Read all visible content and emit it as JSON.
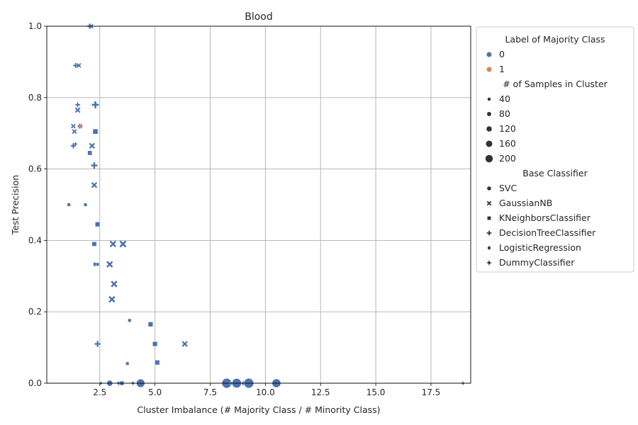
{
  "chart_data": {
    "type": "scatter",
    "title": "Blood",
    "xlabel": "Cluster Imbalance (# Majority Class / # Minority Class)",
    "ylabel": "Test Precision",
    "xlim": [
      0.1,
      19.3
    ],
    "ylim": [
      0.0,
      1.0
    ],
    "xticks": [
      "2.5",
      "5.0",
      "7.5",
      "10.0",
      "12.5",
      "15.0",
      "17.5"
    ],
    "xtick_values": [
      2.5,
      5.0,
      7.5,
      10.0,
      12.5,
      15.0,
      17.5
    ],
    "yticks": [
      "0.0",
      "0.2",
      "0.4",
      "0.6",
      "0.8",
      "1.0"
    ],
    "ytick_values": [
      0.0,
      0.2,
      0.4,
      0.6,
      0.8,
      1.0
    ],
    "grid": true,
    "legend_position": "outside-right",
    "colors": {
      "0": "#4c72b0",
      "1": "#dd8452"
    },
    "legend": {
      "hue_title": "Label of Majority Class",
      "hue_entries": [
        {
          "label": "0",
          "color": "#4c72b0"
        },
        {
          "label": "1",
          "color": "#dd8452"
        }
      ],
      "size_title": "# of Samples in Cluster",
      "size_entries": [
        {
          "label": "40",
          "value": 40
        },
        {
          "label": "80",
          "value": 80
        },
        {
          "label": "120",
          "value": 120
        },
        {
          "label": "160",
          "value": 160
        },
        {
          "label": "200",
          "value": 200
        }
      ],
      "style_title": "Base Classifier",
      "style_entries": [
        {
          "label": "SVC",
          "marker": "circle"
        },
        {
          "label": "GaussianNB",
          "marker": "x"
        },
        {
          "label": "KNeighborsClassifier",
          "marker": "square"
        },
        {
          "label": "DecisionTreeClassifier",
          "marker": "plus"
        },
        {
          "label": "LogisticRegression",
          "marker": "diamond"
        },
        {
          "label": "DummyClassifier",
          "marker": "star"
        }
      ]
    },
    "points": [
      {
        "x": 2.05,
        "y": 1.0,
        "marker": "plus",
        "label": 0,
        "size": 60
      },
      {
        "x": 2.1,
        "y": 1.0,
        "marker": "x",
        "label": 0,
        "size": 50
      },
      {
        "x": 1.4,
        "y": 0.89,
        "marker": "plus",
        "label": 0,
        "size": 50
      },
      {
        "x": 1.55,
        "y": 0.89,
        "marker": "x",
        "label": 0,
        "size": 50
      },
      {
        "x": 1.5,
        "y": 0.78,
        "marker": "plus",
        "label": 0,
        "size": 50
      },
      {
        "x": 2.3,
        "y": 0.78,
        "marker": "plus",
        "label": 0,
        "size": 110
      },
      {
        "x": 1.5,
        "y": 0.765,
        "marker": "x",
        "label": 0,
        "size": 70
      },
      {
        "x": 1.3,
        "y": 0.72,
        "marker": "x",
        "label": 0,
        "size": 50
      },
      {
        "x": 1.6,
        "y": 0.72,
        "marker": "plus",
        "label": 0,
        "size": 50
      },
      {
        "x": 1.62,
        "y": 0.72,
        "marker": "x",
        "label": 1,
        "size": 40
      },
      {
        "x": 1.35,
        "y": 0.705,
        "marker": "x",
        "label": 0,
        "size": 50
      },
      {
        "x": 2.3,
        "y": 0.705,
        "marker": "square",
        "label": 0,
        "size": 90
      },
      {
        "x": 1.3,
        "y": 0.665,
        "marker": "plus",
        "label": 0,
        "size": 60
      },
      {
        "x": 1.4,
        "y": 0.67,
        "marker": "star",
        "label": 0,
        "size": 30
      },
      {
        "x": 2.15,
        "y": 0.665,
        "marker": "x",
        "label": 0,
        "size": 80
      },
      {
        "x": 2.05,
        "y": 0.645,
        "marker": "square",
        "label": 0,
        "size": 70
      },
      {
        "x": 2.25,
        "y": 0.61,
        "marker": "plus",
        "label": 0,
        "size": 90
      },
      {
        "x": 2.25,
        "y": 0.555,
        "marker": "x",
        "label": 0,
        "size": 80
      },
      {
        "x": 1.1,
        "y": 0.5,
        "marker": "square",
        "label": 0,
        "size": 30
      },
      {
        "x": 1.85,
        "y": 0.5,
        "marker": "square",
        "label": 0,
        "size": 30
      },
      {
        "x": 2.4,
        "y": 0.445,
        "marker": "square",
        "label": 0,
        "size": 80
      },
      {
        "x": 2.25,
        "y": 0.39,
        "marker": "square",
        "label": 0,
        "size": 70
      },
      {
        "x": 3.1,
        "y": 0.39,
        "marker": "x",
        "label": 0,
        "size": 100
      },
      {
        "x": 3.55,
        "y": 0.39,
        "marker": "x",
        "label": 0,
        "size": 110
      },
      {
        "x": 2.3,
        "y": 0.333,
        "marker": "square",
        "label": 0,
        "size": 50
      },
      {
        "x": 2.4,
        "y": 0.333,
        "marker": "square",
        "label": 0,
        "size": 30
      },
      {
        "x": 2.95,
        "y": 0.333,
        "marker": "x",
        "label": 0,
        "size": 100
      },
      {
        "x": 3.15,
        "y": 0.278,
        "marker": "x",
        "label": 0,
        "size": 100
      },
      {
        "x": 3.05,
        "y": 0.235,
        "marker": "x",
        "label": 0,
        "size": 100
      },
      {
        "x": 3.85,
        "y": 0.176,
        "marker": "square",
        "label": 0,
        "size": 30
      },
      {
        "x": 4.8,
        "y": 0.165,
        "marker": "square",
        "label": 0,
        "size": 80
      },
      {
        "x": 2.4,
        "y": 0.11,
        "marker": "plus",
        "label": 0,
        "size": 80
      },
      {
        "x": 5.0,
        "y": 0.11,
        "marker": "square",
        "label": 0,
        "size": 80
      },
      {
        "x": 6.35,
        "y": 0.11,
        "marker": "x",
        "label": 0,
        "size": 80
      },
      {
        "x": 3.75,
        "y": 0.055,
        "marker": "square",
        "label": 0,
        "size": 30
      },
      {
        "x": 5.1,
        "y": 0.058,
        "marker": "square",
        "label": 0,
        "size": 80
      },
      {
        "x": 2.95,
        "y": 0.0,
        "marker": "circle",
        "label": 0,
        "size": 90
      },
      {
        "x": 2.55,
        "y": 0.0,
        "marker": "diamond",
        "label": 0,
        "size": 30
      },
      {
        "x": 3.35,
        "y": 0.0,
        "marker": "star",
        "label": 0,
        "size": 40
      },
      {
        "x": 3.5,
        "y": 0.0,
        "marker": "square",
        "label": 0,
        "size": 60
      },
      {
        "x": 4.0,
        "y": 0.0,
        "marker": "diamond",
        "label": 0,
        "size": 40
      },
      {
        "x": 4.35,
        "y": 0.0,
        "marker": "circle",
        "label": 0,
        "size": 160
      },
      {
        "x": 8.25,
        "y": 0.0,
        "marker": "circle",
        "label": 0,
        "size": 200
      },
      {
        "x": 8.45,
        "y": 0.0,
        "marker": "diamond",
        "label": 0,
        "size": 40
      },
      {
        "x": 8.7,
        "y": 0.0,
        "marker": "circle",
        "label": 0,
        "size": 190
      },
      {
        "x": 9.0,
        "y": 0.0,
        "marker": "diamond",
        "label": 0,
        "size": 60
      },
      {
        "x": 9.25,
        "y": 0.0,
        "marker": "circle",
        "label": 0,
        "size": 200
      },
      {
        "x": 10.5,
        "y": 0.0,
        "marker": "circle",
        "label": 0,
        "size": 170
      },
      {
        "x": 18.95,
        "y": 0.0,
        "marker": "star",
        "label": 0,
        "size": 30
      }
    ]
  }
}
